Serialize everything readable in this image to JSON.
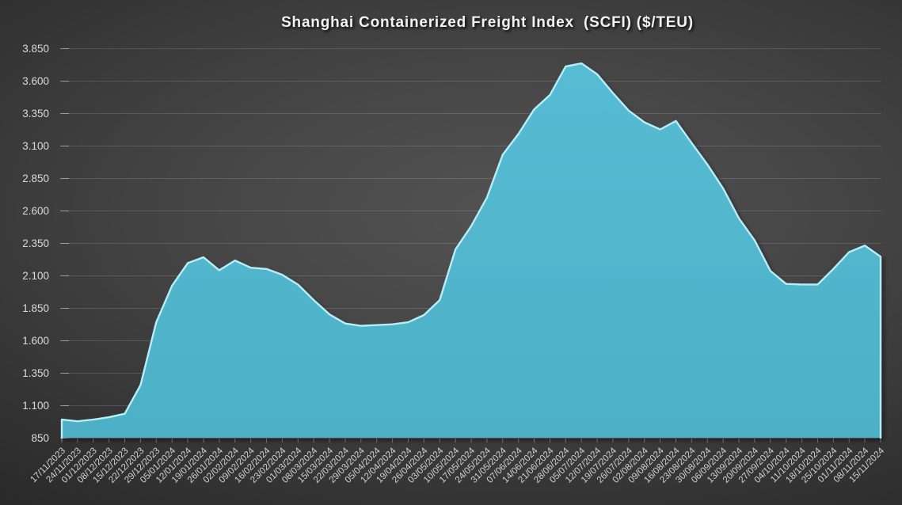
{
  "chart_data": {
    "type": "area",
    "title": "Shanghai Containerized Freight Index  (SCFI) ($/TEU)",
    "xlabel": "",
    "ylabel": "",
    "ylim": [
      850,
      3850
    ],
    "grid": "horizontal",
    "legend": "none",
    "x_tick_rotation": -45,
    "ytick_values": [
      850,
      1100,
      1350,
      1600,
      1850,
      2100,
      2350,
      2600,
      2850,
      3100,
      3350,
      3600,
      3850
    ],
    "ytick_labels": [
      "850",
      "1.100",
      "1.350",
      "1.600",
      "1.850",
      "2.100",
      "2.350",
      "2.600",
      "2.850",
      "3.100",
      "3.350",
      "3.600",
      "3.850"
    ],
    "categories": [
      "17/11/2023",
      "24/11/2023",
      "01/12/2023",
      "08/12/2023",
      "15/12/2023",
      "22/12/2023",
      "29/12/2023",
      "05/01/2024",
      "12/01/2024",
      "19/01/2024",
      "26/01/2024",
      "02/02/2024",
      "09/02/2024",
      "16/02/2024",
      "23/02/2024",
      "01/03/2024",
      "08/03/2024",
      "15/03/2024",
      "22/03/2024",
      "29/03/2024",
      "05/04/2024",
      "12/04/2024",
      "19/04/2024",
      "26/04/2024",
      "03/05/2024",
      "10/05/2024",
      "17/05/2024",
      "24/05/2024",
      "31/05/2024",
      "07/06/2024",
      "14/06/2024",
      "21/06/2024",
      "28/06/2024",
      "05/07/2024",
      "12/07/2024",
      "19/07/2024",
      "26/07/2024",
      "02/08/2024",
      "09/08/2024",
      "16/08/2024",
      "23/08/2024",
      "30/08/2024",
      "06/09/2024",
      "13/09/2024",
      "20/09/2024",
      "27/09/2024",
      "04/10/2024",
      "11/10/2024",
      "18/10/2024",
      "25/10/2024",
      "01/11/2024",
      "08/11/2024",
      "15/11/2024"
    ],
    "values": [
      990,
      977,
      990,
      1008,
      1035,
      1255,
      1740,
      2020,
      2195,
      2240,
      2140,
      2215,
      2160,
      2150,
      2105,
      2030,
      1910,
      1800,
      1730,
      1712,
      1718,
      1724,
      1740,
      1795,
      1910,
      2300,
      2480,
      2700,
      3030,
      3190,
      3380,
      3490,
      3710,
      3734,
      3650,
      3505,
      3370,
      3280,
      3225,
      3290,
      3120,
      2955,
      2770,
      2540,
      2370,
      2135,
      2035,
      2030,
      2030,
      2150,
      2280,
      2330,
      2245
    ],
    "colors": {
      "series_fill": "#56bcd3",
      "series_fill_bottom": "#4db0c6",
      "series_edge_highlight": "#b6edf7",
      "gridline": "rgba(255,255,255,0.14)",
      "axis_tick": "rgba(255,255,255,0.45)",
      "y_label": "#dadada",
      "x_label": "#d2d2d2",
      "title": "#f2f2f2"
    }
  }
}
